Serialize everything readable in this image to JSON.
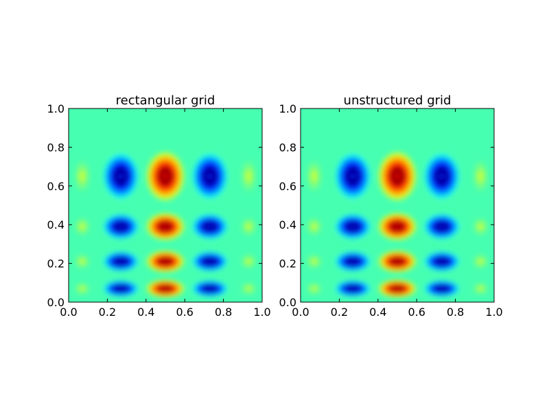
{
  "chart_data": [
    {
      "type": "heatmap",
      "title": "rectangular grid",
      "xlabel": "",
      "ylabel": "",
      "xlim": [
        0.0,
        1.0
      ],
      "ylim": [
        0.0,
        1.0
      ],
      "xticks": [
        "0.0",
        "0.2",
        "0.4",
        "0.6",
        "0.8",
        "1.0"
      ],
      "yticks": [
        "0.0",
        "0.2",
        "0.4",
        "0.6",
        "0.8",
        "1.0"
      ],
      "colormap": "jet",
      "grid": false,
      "background_color": "#46ffb1",
      "blobs": [
        {
          "x": 0.27,
          "y": 0.65,
          "value": -1.0
        },
        {
          "x": 0.5,
          "y": 0.65,
          "value": 1.0
        },
        {
          "x": 0.73,
          "y": 0.65,
          "value": -1.0
        },
        {
          "x": 0.27,
          "y": 0.39,
          "value": -1.0
        },
        {
          "x": 0.5,
          "y": 0.39,
          "value": 1.0
        },
        {
          "x": 0.73,
          "y": 0.39,
          "value": -1.0
        },
        {
          "x": 0.27,
          "y": 0.21,
          "value": -1.0
        },
        {
          "x": 0.5,
          "y": 0.21,
          "value": 1.0
        },
        {
          "x": 0.73,
          "y": 0.21,
          "value": -1.0
        },
        {
          "x": 0.27,
          "y": 0.07,
          "value": -1.0
        },
        {
          "x": 0.5,
          "y": 0.07,
          "value": 1.0
        },
        {
          "x": 0.73,
          "y": 0.07,
          "value": -1.0
        },
        {
          "x": 0.07,
          "y": 0.65,
          "value": 0.25
        },
        {
          "x": 0.93,
          "y": 0.65,
          "value": 0.25
        },
        {
          "x": 0.07,
          "y": 0.39,
          "value": 0.25
        },
        {
          "x": 0.93,
          "y": 0.39,
          "value": 0.25
        },
        {
          "x": 0.07,
          "y": 0.21,
          "value": 0.25
        },
        {
          "x": 0.93,
          "y": 0.21,
          "value": 0.25
        },
        {
          "x": 0.07,
          "y": 0.07,
          "value": 0.25
        },
        {
          "x": 0.93,
          "y": 0.07,
          "value": 0.25
        }
      ]
    },
    {
      "type": "heatmap",
      "title": "unstructured grid",
      "xlabel": "",
      "ylabel": "",
      "xlim": [
        0.0,
        1.0
      ],
      "ylim": [
        0.0,
        1.0
      ],
      "xticks": [
        "0.0",
        "0.2",
        "0.4",
        "0.6",
        "0.8",
        "1.0"
      ],
      "yticks": [
        "0.0",
        "0.2",
        "0.4",
        "0.6",
        "0.8",
        "1.0"
      ],
      "colormap": "jet",
      "grid": false,
      "background_color": "#46ffb1",
      "blobs": [
        {
          "x": 0.27,
          "y": 0.65,
          "value": -1.0
        },
        {
          "x": 0.5,
          "y": 0.65,
          "value": 1.0
        },
        {
          "x": 0.73,
          "y": 0.65,
          "value": -1.0
        },
        {
          "x": 0.27,
          "y": 0.39,
          "value": -1.0
        },
        {
          "x": 0.5,
          "y": 0.39,
          "value": 1.0
        },
        {
          "x": 0.73,
          "y": 0.39,
          "value": -1.0
        },
        {
          "x": 0.27,
          "y": 0.21,
          "value": -1.0
        },
        {
          "x": 0.5,
          "y": 0.21,
          "value": 1.0
        },
        {
          "x": 0.73,
          "y": 0.21,
          "value": -1.0
        },
        {
          "x": 0.27,
          "y": 0.07,
          "value": -1.0
        },
        {
          "x": 0.5,
          "y": 0.07,
          "value": 1.0
        },
        {
          "x": 0.73,
          "y": 0.07,
          "value": -1.0
        },
        {
          "x": 0.07,
          "y": 0.65,
          "value": 0.25
        },
        {
          "x": 0.93,
          "y": 0.65,
          "value": 0.25
        },
        {
          "x": 0.07,
          "y": 0.39,
          "value": 0.25
        },
        {
          "x": 0.93,
          "y": 0.39,
          "value": 0.25
        },
        {
          "x": 0.07,
          "y": 0.21,
          "value": 0.25
        },
        {
          "x": 0.93,
          "y": 0.21,
          "value": 0.25
        },
        {
          "x": 0.07,
          "y": 0.07,
          "value": 0.25
        },
        {
          "x": 0.93,
          "y": 0.07,
          "value": 0.25
        }
      ]
    }
  ]
}
